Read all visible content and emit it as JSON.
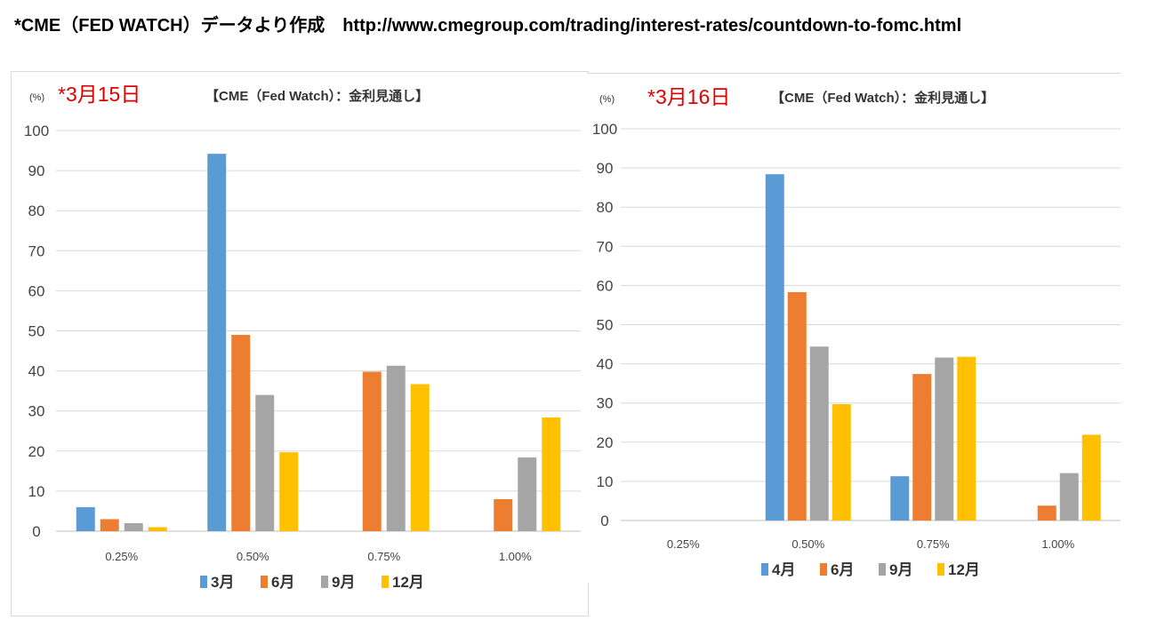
{
  "header": "*CME（FED WATCH）データより作成　http://www.cmegroup.com/trading/interest-rates/countdown-to-fomc.html",
  "colors": {
    "blue": "#5b9bd5",
    "orange": "#ed7d31",
    "gray": "#a5a5a5",
    "yellow": "#ffc000",
    "grid": "#d9d9d9",
    "date": "#e00000"
  },
  "chart_data": [
    {
      "type": "bar",
      "date_label": "*3月15日",
      "title": "【CME（Fed Watch）：金利見通し】",
      "unit": "(%)",
      "ylim": [
        0,
        100
      ],
      "yticks": [
        0,
        10,
        20,
        30,
        40,
        50,
        60,
        70,
        80,
        90,
        100
      ],
      "grid": true,
      "legend_position": "bottom",
      "categories": [
        "0.25%",
        "0.50%",
        "0.75%",
        "1.00%"
      ],
      "series": [
        {
          "name": "3月",
          "color": "#5b9bd5",
          "values": [
            6,
            94.2,
            0,
            0
          ]
        },
        {
          "name": "6月",
          "color": "#ed7d31",
          "values": [
            3,
            49,
            39.8,
            8
          ]
        },
        {
          "name": "9月",
          "color": "#a5a5a5",
          "values": [
            2,
            34,
            41.3,
            18.4
          ]
        },
        {
          "name": "12月",
          "color": "#ffc000",
          "values": [
            1,
            19.7,
            36.7,
            28.4
          ]
        }
      ]
    },
    {
      "type": "bar",
      "date_label": "*3月16日",
      "title": "【CME（Fed Watch）：金利見通し】",
      "unit": "(%)",
      "ylim": [
        0,
        100
      ],
      "yticks": [
        0,
        10,
        20,
        30,
        40,
        50,
        60,
        70,
        80,
        90,
        100
      ],
      "grid": true,
      "legend_position": "bottom",
      "categories": [
        "0.25%",
        "0.50%",
        "0.75%",
        "1.00%"
      ],
      "series": [
        {
          "name": "4月",
          "color": "#5b9bd5",
          "values": [
            0,
            88.4,
            11.3,
            0
          ]
        },
        {
          "name": "6月",
          "color": "#ed7d31",
          "values": [
            0,
            58.3,
            37.4,
            3.8
          ]
        },
        {
          "name": "9月",
          "color": "#a5a5a5",
          "values": [
            0,
            44.4,
            41.6,
            12.1
          ]
        },
        {
          "name": "12月",
          "color": "#ffc000",
          "values": [
            0,
            29.7,
            41.8,
            21.9
          ]
        }
      ]
    }
  ]
}
